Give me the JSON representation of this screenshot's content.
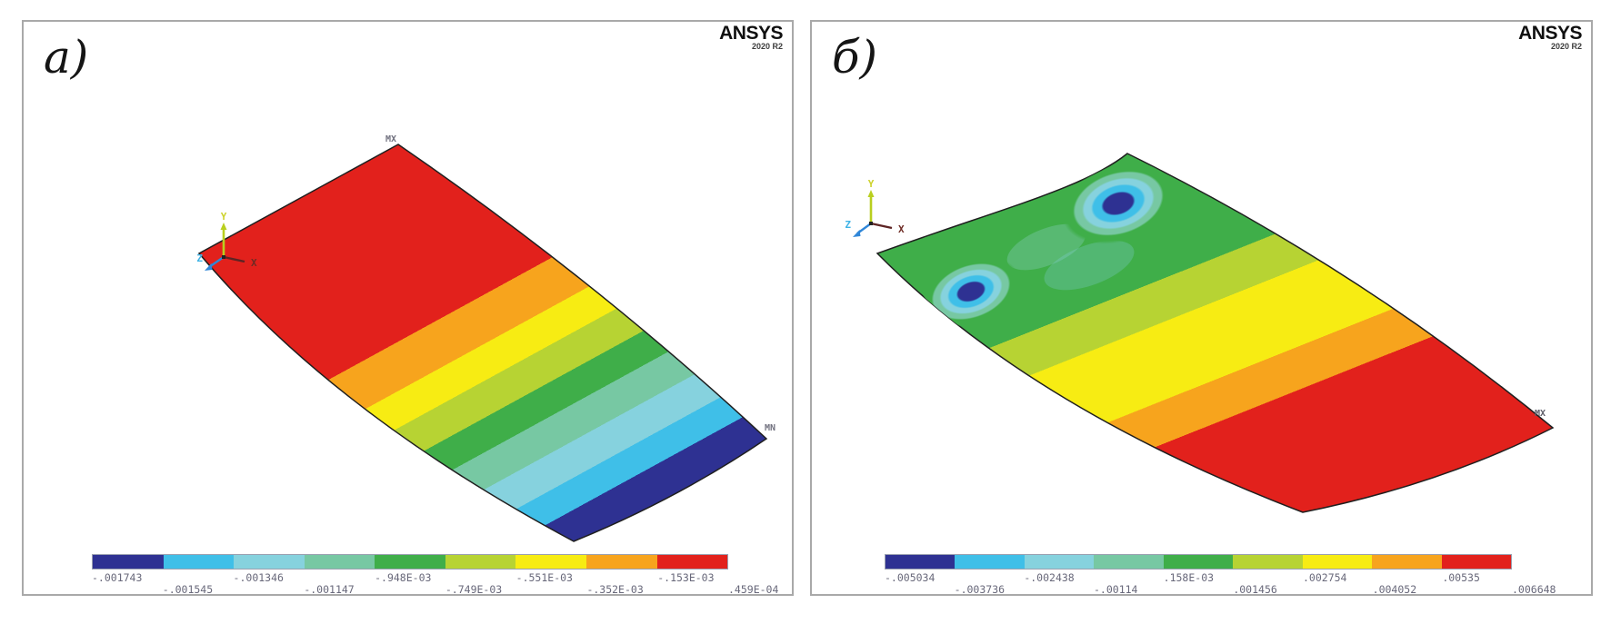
{
  "palette": {
    "contour_colors_low_to_high": [
      "#2e3192",
      "#3fbfe8",
      "#86d2de",
      "#77c8a3",
      "#3fae49",
      "#b7d333",
      "#f7ec13",
      "#f7a41d",
      "#e2211c"
    ],
    "panel_border": "#a9a9a9",
    "legend_text": "#68687a",
    "marker_text": "#70707e",
    "axis_y_color": "#bdd024",
    "axis_x_color": "#5d2424",
    "axis_z_color": "#2f86d8",
    "logo_text": "#101010"
  },
  "panels": [
    {
      "label": "а)",
      "logo": {
        "brand": "ANSYS",
        "version": "2020 R2"
      },
      "axes": {
        "x": "X",
        "y": "Y",
        "z": "Z"
      },
      "markers": {
        "max": "MX",
        "min": "MN"
      },
      "legend_values": [
        "-.001743",
        "-.001545",
        "-.001346",
        "-.001147",
        "-.948E-03",
        "-.749E-03",
        "-.551E-03",
        "-.352E-03",
        "-.153E-03",
        ".459E-04"
      ]
    },
    {
      "label": "б)",
      "logo": {
        "brand": "ANSYS",
        "version": "2020 R2"
      },
      "axes": {
        "x": "X",
        "y": "Y",
        "z": "Z"
      },
      "markers": {
        "max": "MX"
      },
      "legend_values": [
        "-.005034",
        "-.003736",
        "-.002438",
        "-.00114",
        ".158E-03",
        ".001456",
        ".002754",
        ".004052",
        ".00535",
        ".006648"
      ]
    }
  ]
}
